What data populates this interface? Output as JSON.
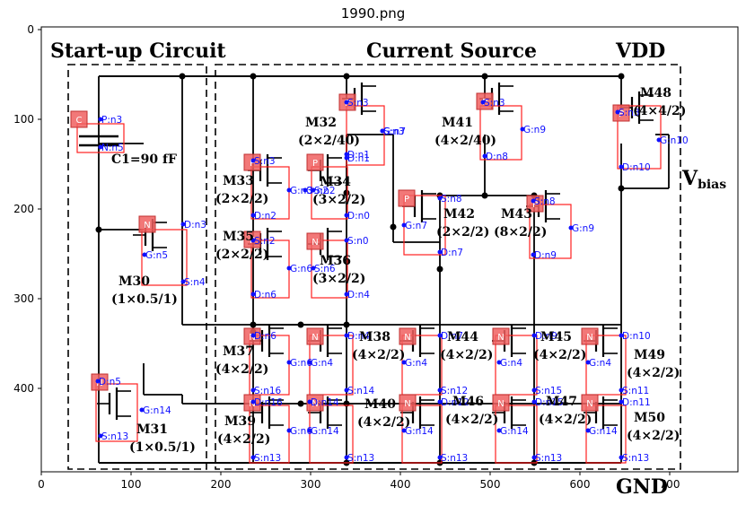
{
  "figure_title": "1990.png",
  "headings": {
    "startup": "Start-up Circuit",
    "current": "Current Source",
    "vdd": "VDD",
    "gnd": "GND",
    "vbias": "V",
    "vbias_sub": "bias",
    "c1": "C1=90 fF"
  },
  "axes": {
    "x_ticks": [
      "0",
      "100",
      "200",
      "300",
      "400",
      "500",
      "600",
      "700"
    ],
    "y_ticks": [
      "0",
      "100",
      "200",
      "300",
      "400",
      "500"
    ]
  },
  "transistors": [
    {
      "name": "M32",
      "size": "(2×2/40)"
    },
    {
      "name": "M41",
      "size": "(4×2/40)"
    },
    {
      "name": "M48",
      "size": "(4×4/2)"
    },
    {
      "name": "M33",
      "size": "(2×2/2)"
    },
    {
      "name": "M34",
      "size": "(3×2/2)"
    },
    {
      "name": "M42",
      "size": "(2×2/2)"
    },
    {
      "name": "M43",
      "size": "(8×2/2)"
    },
    {
      "name": "M35",
      "size": "(2×2/2)"
    },
    {
      "name": "M36",
      "size": "(3×2/2)"
    },
    {
      "name": "M30",
      "size": "(1×0.5/1)"
    },
    {
      "name": "M37",
      "size": "(4×2/2)"
    },
    {
      "name": "M38",
      "size": "(4×2/2)"
    },
    {
      "name": "M44",
      "size": "(4×2/2)"
    },
    {
      "name": "M45",
      "size": "(4×2/2)"
    },
    {
      "name": "M49",
      "size": "(4×2/2)"
    },
    {
      "name": "M39",
      "size": "(4×2/2)"
    },
    {
      "name": "M40",
      "size": "(4×2/2)"
    },
    {
      "name": "M46",
      "size": "(4×2/2)"
    },
    {
      "name": "M47",
      "size": "(4×2/2)"
    },
    {
      "name": "M50",
      "size": "(4×2/2)"
    },
    {
      "name": "M31",
      "size": "(1×0.5/1)"
    }
  ],
  "type_tags": [
    "C",
    "N",
    "N",
    "P",
    "P",
    "P",
    "P",
    "P",
    "P",
    "P",
    "P",
    "N",
    "N",
    "N",
    "N",
    "N",
    "N",
    "N",
    "N",
    "N",
    "N",
    "N"
  ],
  "node_labels": [
    "P:n3",
    "N:n5",
    "D:n3",
    "G:n5",
    "S:n4",
    "D:n5",
    "G:n14",
    "S:n13",
    "S:n3",
    "G:n3",
    "D:n2",
    "S:n2",
    "G:n6",
    "D:n6",
    "S:n3",
    "D:n1",
    "S:n2",
    "D:n0",
    "G:n2",
    "S:n0",
    "S:n6",
    "D:n4",
    "S:n3",
    "G:n7",
    "D:n1",
    "S:n3",
    "G:n9",
    "D:n8",
    "S:n8",
    "G:n7",
    "D:n7",
    "S:n8",
    "G:n9",
    "D:n9",
    "S:n3",
    "G:n10",
    "D:n10",
    "D:n6",
    "G:n6",
    "S:n16",
    "D:n16",
    "G:n6",
    "S:n13",
    "D:n4",
    "G:n4",
    "S:n14",
    "D:n14",
    "G:n14",
    "S:n13",
    "D:n7",
    "G:n4",
    "S:n12",
    "D:n12",
    "G:n14",
    "S:n13",
    "D:n9",
    "G:n4",
    "S:n15",
    "D:n15",
    "G:n14",
    "S:n13",
    "D:n10",
    "G:n4",
    "S:n11",
    "D:n11",
    "G:n14",
    "S:n13"
  ]
}
